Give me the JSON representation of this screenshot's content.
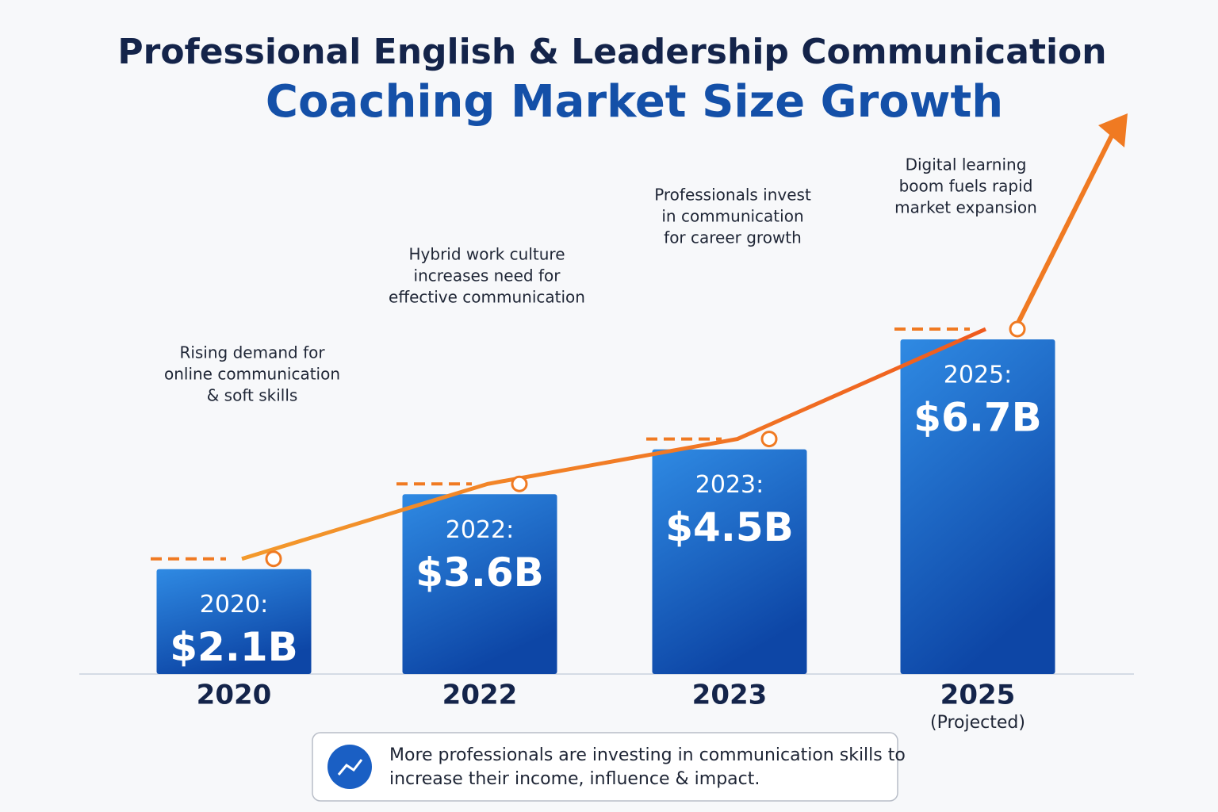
{
  "chart_data": {
    "type": "bar",
    "title_lines": [
      "Professional English & Leadership Communication",
      "Coaching Market Size Growth"
    ],
    "categories": [
      "2020",
      "2022",
      "2023",
      "2025"
    ],
    "category_notes": [
      null,
      null,
      null,
      "(Projected)"
    ],
    "bar_labels": [
      "2020:",
      "2022:",
      "2023:",
      "2025:"
    ],
    "values": [
      2.1,
      3.6,
      4.5,
      6.7
    ],
    "value_labels": [
      "$2.1B",
      "$3.6B",
      "$4.5B",
      "$6.7B"
    ],
    "annotations": [
      [
        "Rising demand for",
        "online communication",
        "& soft skills"
      ],
      [
        "Hybrid work culture",
        "increases need for",
        "effective communication"
      ],
      [
        "Professionals invest",
        "in communication",
        "for career growth"
      ],
      [
        "Digital learning",
        "boom fuels rapid",
        "market expansion"
      ]
    ],
    "color": "#1a5fc4",
    "trend_color": "#f07a22",
    "footnote": [
      "More professionals are investing in communication skills to",
      "increase their income, influence & impact."
    ]
  }
}
